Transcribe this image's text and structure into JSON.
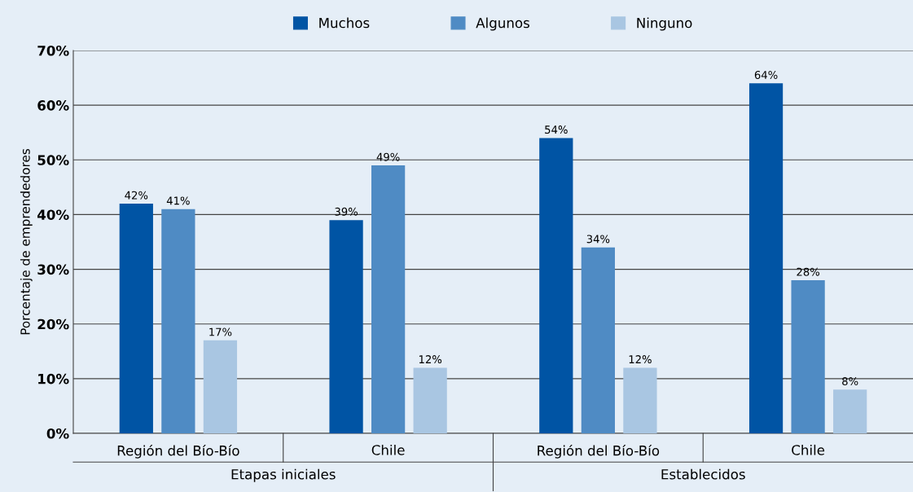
{
  "chart_data": {
    "type": "bar",
    "ylabel": "Porcentaje de emprendedores",
    "categories": [
      "Región del Bío-Bío",
      "Chile",
      "Región del Bío-Bío",
      "Chile"
    ],
    "series": [
      {
        "name": "Muchos",
        "color": "#0054a4",
        "values": [
          42,
          39,
          54,
          64
        ],
        "value_labels": [
          "42%",
          "39%",
          "54%",
          "64%"
        ]
      },
      {
        "name": "Algunos",
        "color": "#4f8bc4",
        "values": [
          41,
          49,
          34,
          28
        ],
        "value_labels": [
          "41%",
          "49%",
          "34%",
          "28%"
        ]
      },
      {
        "name": "Ninguno",
        "color": "#a9c6e2",
        "values": [
          17,
          12,
          12,
          8
        ],
        "value_labels": [
          "17%",
          "12%",
          "12%",
          "8%"
        ]
      }
    ],
    "annotations": [
      "Etapas iniciales",
      "Establecidos"
    ],
    "ylim": [
      0,
      70
    ],
    "yticks": [
      {
        "value": 0,
        "label": "0%"
      },
      {
        "value": 10,
        "label": "10%"
      },
      {
        "value": 20,
        "label": "20%"
      },
      {
        "value": 30,
        "label": "30%"
      },
      {
        "value": 40,
        "label": "40%"
      },
      {
        "value": 50,
        "label": "50%"
      },
      {
        "value": 60,
        "label": "60%"
      },
      {
        "value": 70,
        "label": "70%"
      }
    ],
    "grid": "y",
    "legend": "top"
  }
}
